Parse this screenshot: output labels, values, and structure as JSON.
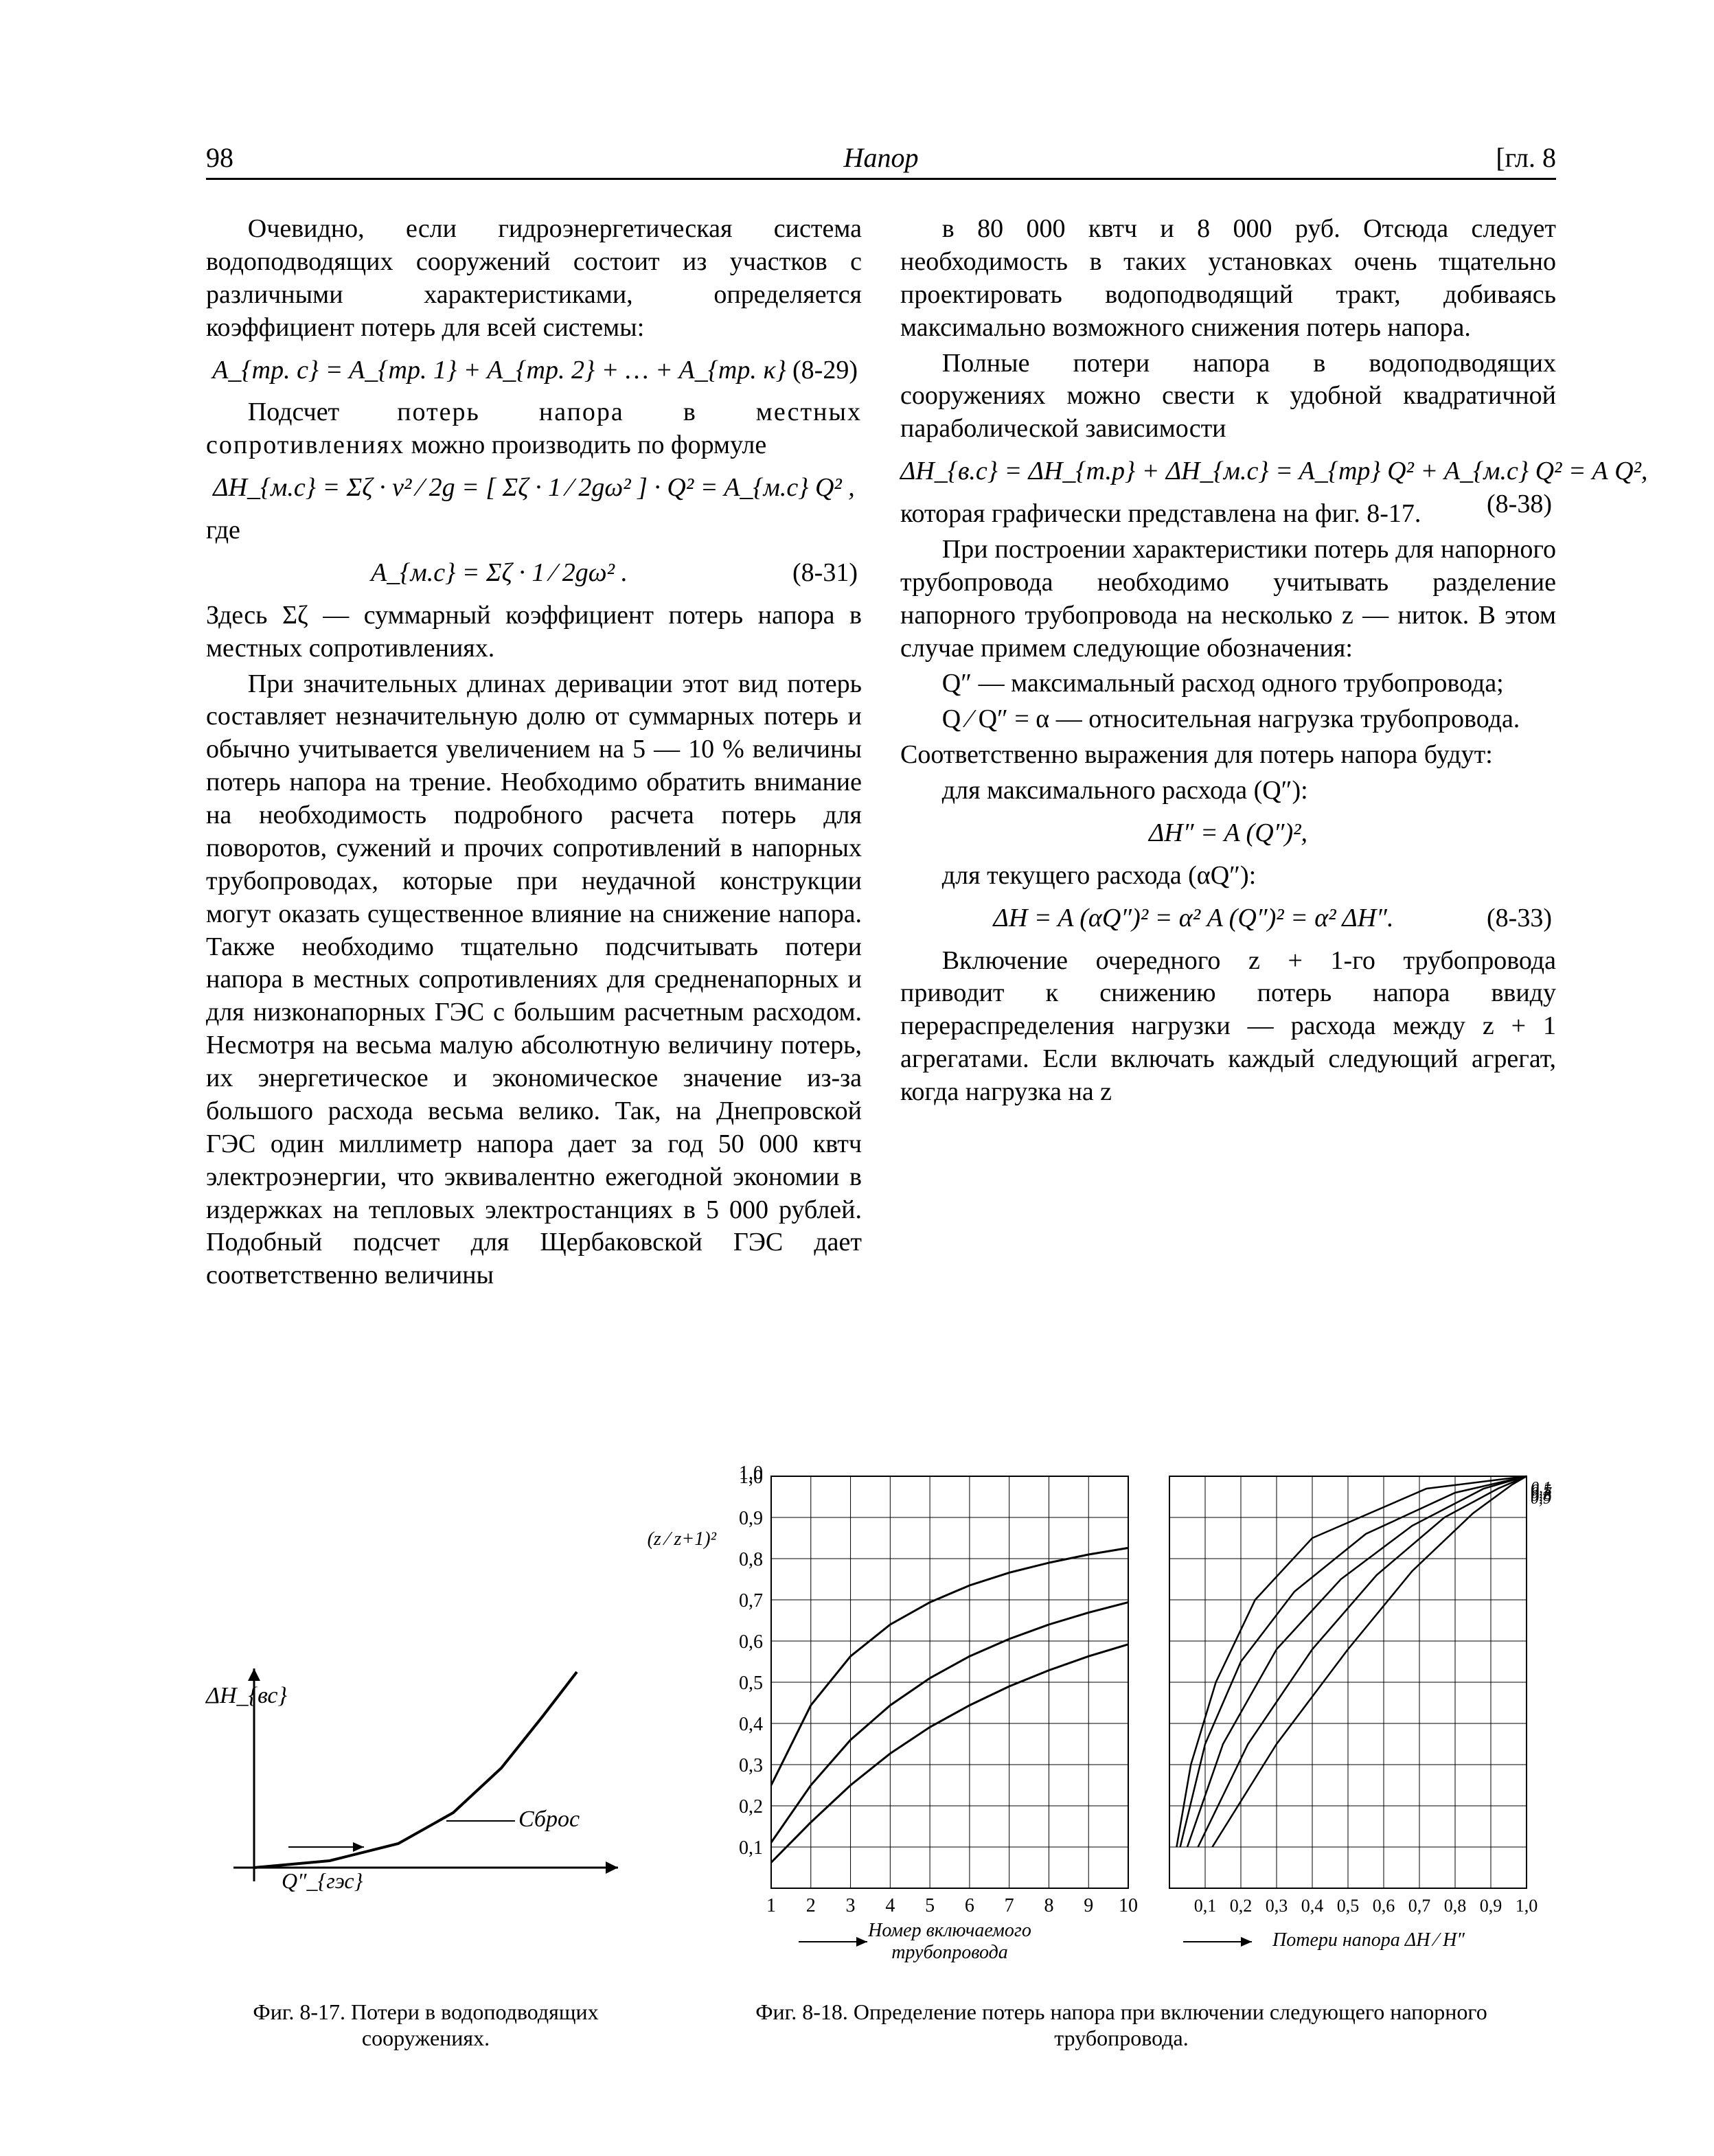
{
  "header": {
    "page_number": "98",
    "running_title": "Напор",
    "chapter_mark": "[гл. 8"
  },
  "left": {
    "p1": "Очевидно, если гидроэнергетическая си­стема водоподводящих сооружений состоит из участков с различными характеристиками, опре­деляется коэффициент потерь для всей системы:",
    "eq829": "A_{тр. c} = A_{тр. 1} + A_{тр. 2} + … + A_{тр. κ}",
    "eq829_tag": "(8-29)",
    "p2a": "Подсчет ",
    "p2b_spaced": "потерь напора в местных сопротивлениях",
    "p2c": " можно производить по формуле",
    "eq_local": "ΔH_{м.c} = Σζ · v² ⁄ 2g = [ Σζ · 1 ⁄ 2gω² ] · Q² = A_{м.c} Q² ,",
    "where": "где",
    "eq831": "A_{м.c} = Σζ · 1 ⁄ 2gω² .",
    "eq831_tag": "(8-31)",
    "note_lead": "Здесь Σζ — суммарный коэффициент потерь на­пора в местных сопротивлениях.",
    "p3": "При значительных длинах деривации этот вид потерь составляет незначительную долю от суммарных потерь и обычно учитывается увеличением на 5 — 10 % величины потерь на­пора на трение. Необходимо обратить внима­ние на необходимость подробного расчета потерь для поворотов, сужений и прочих сопротив­лений в напорных трубопроводах, которые при неудачной конструкции могут оказать суще­ственное влияние на снижение напора. Также необходимо тщательно подсчитывать потери напора в местных сопротивлениях для средне­на­порных и для низконапорных ГЭС с большим расчетным расходом. Несмотря на весьма малую абсолютную величину потерь, их энер­гетическое и экономическое значение из-за большого расхода весьма велико. Так, на Дне­провской ГЭС один миллиметр напора дает за год 50 000 квтч электроэнер­гии, что эквивалентно ежегод­ной экономии в издержках на тепловых электростанциях в 5 000 рублей. Подобный под­счет для Щербаковской ГЭС дает соответственно величины"
  },
  "right": {
    "p1": "в 80 000 квтч и 8 000 руб. Отсюда следует необходимость в таких установках очень тща­тельно проектировать водоподводящий тракт, добиваясь максимально возможного снижения потерь напора.",
    "p2": "Полные потери напора в водоподводящих сооружениях можно свести к удобной квадра­тичной параболической зависимости",
    "eq838": "ΔH_{в.c} = ΔH_{т.р} + ΔH_{м.c} = A_{тр} Q² + A_{м.c} Q² = A Q²,",
    "eq838_tag": "(8-38)",
    "p3": "которая графически представлена на фиг. 8-17.",
    "p4": "При построении характеристики потерь для напорного трубопровода необходимо учитывать разделение напорного трубопровода на не­сколько z — ниток. В этом случае примем следующие обозначения:",
    "q1": "Q″ — максимальный расход одного трубо­провода;",
    "q2": "Q ⁄ Q″ = α — относительная нагрузка трубопро­вода.",
    "p5": "Соответственно выражения для потерь напора будут:",
    "line_max": "для максимального расхода (Q″):",
    "eq_max": "ΔH″ = A (Q″)²,",
    "line_cur": "для текущего расхода (αQ″):",
    "eq833": "ΔH = A (αQ″)² = α² A (Q″)² = α² ΔH″.",
    "eq833_tag": "(8-33)",
    "p6": "Включение очередного z + 1-го трубопро­вода приводит к снижению потерь напора ввиду перераспределения нагрузки — расхода между z + 1 агрегатами. Если включать каж­дый следующий агрегат, когда нагрузка на z"
  },
  "fig817": {
    "type": "schematic-curve",
    "x_arrow_from": [
      40,
      330
    ],
    "x_arrow_to": [
      600,
      330
    ],
    "y_arrow_from": [
      70,
      350
    ],
    "y_arrow_to": [
      70,
      40
    ],
    "curve": [
      [
        70,
        330
      ],
      [
        180,
        320
      ],
      [
        280,
        295
      ],
      [
        360,
        250
      ],
      [
        430,
        185
      ],
      [
        490,
        110
      ],
      [
        540,
        45
      ]
    ],
    "curve_color": "#000000",
    "curve_width": 4,
    "y_label": "ΔH_{вс}",
    "x_label_left": "Q″_{гэс}",
    "x_label_right": "Сброс",
    "caption": "Фиг. 8-17. Потери в водоподводящих сооружениях."
  },
  "fig818": {
    "type": "two-panel-line-chart",
    "grid_color": "#000000",
    "background_color": "#ffffff",
    "leftpanel": {
      "x_ticks": [
        1,
        2,
        3,
        4,
        5,
        6,
        7,
        8,
        9,
        10
      ],
      "y_ticks": [
        0.1,
        0.2,
        0.3,
        0.4,
        0.5,
        0.6,
        0.7,
        0.8,
        0.9,
        1.0
      ],
      "y_tick_labels": [
        "0,1",
        "0,2",
        "0,3",
        "0,4",
        "0,5",
        "0,6",
        "0,7",
        "0,8",
        "0,9",
        "1,0"
      ],
      "y_axis_label": "(z ⁄ z+1)²",
      "x_axis_label_1": "Номер включаемого",
      "x_axis_label_2": "трубопровода",
      "series": [
        {
          "color": "#000000",
          "width": 3,
          "points": [
            [
              1,
              0.25
            ],
            [
              2,
              0.444
            ],
            [
              3,
              0.563
            ],
            [
              4,
              0.64
            ],
            [
              5,
              0.694
            ],
            [
              6,
              0.735
            ],
            [
              7,
              0.766
            ],
            [
              8,
              0.79
            ],
            [
              9,
              0.81
            ],
            [
              10,
              0.826
            ]
          ]
        },
        {
          "color": "#000000",
          "width": 3,
          "points": [
            [
              1,
              0.111
            ],
            [
              2,
              0.25
            ],
            [
              3,
              0.36
            ],
            [
              4,
              0.444
            ],
            [
              5,
              0.51
            ],
            [
              6,
              0.563
            ],
            [
              7,
              0.605
            ],
            [
              8,
              0.64
            ],
            [
              9,
              0.669
            ],
            [
              10,
              0.694
            ]
          ]
        },
        {
          "color": "#000000",
          "width": 3,
          "points": [
            [
              1,
              0.0625
            ],
            [
              2,
              0.16
            ],
            [
              3,
              0.25
            ],
            [
              4,
              0.327
            ],
            [
              5,
              0.391
            ],
            [
              6,
              0.444
            ],
            [
              7,
              0.49
            ],
            [
              8,
              0.529
            ],
            [
              9,
              0.563
            ],
            [
              10,
              0.592
            ]
          ]
        }
      ]
    },
    "rightpanel": {
      "x_ticks": [
        0.1,
        0.2,
        0.3,
        0.4,
        0.5,
        0.6,
        0.7,
        0.8,
        0.9,
        1.0
      ],
      "x_tick_labels": [
        "0,1",
        "0,2",
        "0,3",
        "0,4",
        "0,5",
        "0,6",
        "0,7",
        "0,8",
        "0,9",
        "1,0"
      ],
      "x_axis_label": "Потери напора  ΔH ⁄ H″",
      "family": {
        "color": "#000000",
        "width": 2.5,
        "end_labels": [
          "0,1",
          "0,5",
          "0,7",
          "0,8",
          "0,9"
        ],
        "curves": [
          [
            [
              0.02,
              0.1
            ],
            [
              0.06,
              0.3
            ],
            [
              0.13,
              0.5
            ],
            [
              0.24,
              0.7
            ],
            [
              0.4,
              0.85
            ],
            [
              0.72,
              0.97
            ],
            [
              1.0,
              1.0
            ]
          ],
          [
            [
              0.03,
              0.1
            ],
            [
              0.1,
              0.35
            ],
            [
              0.2,
              0.55
            ],
            [
              0.35,
              0.72
            ],
            [
              0.55,
              0.86
            ],
            [
              0.8,
              0.96
            ],
            [
              1.0,
              1.0
            ]
          ],
          [
            [
              0.05,
              0.1
            ],
            [
              0.15,
              0.35
            ],
            [
              0.3,
              0.58
            ],
            [
              0.48,
              0.75
            ],
            [
              0.68,
              0.88
            ],
            [
              0.88,
              0.97
            ],
            [
              1.0,
              1.0
            ]
          ],
          [
            [
              0.08,
              0.1
            ],
            [
              0.22,
              0.35
            ],
            [
              0.4,
              0.58
            ],
            [
              0.58,
              0.76
            ],
            [
              0.77,
              0.9
            ],
            [
              0.92,
              0.97
            ],
            [
              1.0,
              1.0
            ]
          ],
          [
            [
              0.12,
              0.1
            ],
            [
              0.3,
              0.35
            ],
            [
              0.5,
              0.58
            ],
            [
              0.68,
              0.77
            ],
            [
              0.85,
              0.91
            ],
            [
              0.96,
              0.98
            ],
            [
              1.0,
              1.0
            ]
          ]
        ]
      }
    },
    "caption": "Фиг. 8-18. Определение потерь напора при включении следующего напорного трубопровода."
  }
}
